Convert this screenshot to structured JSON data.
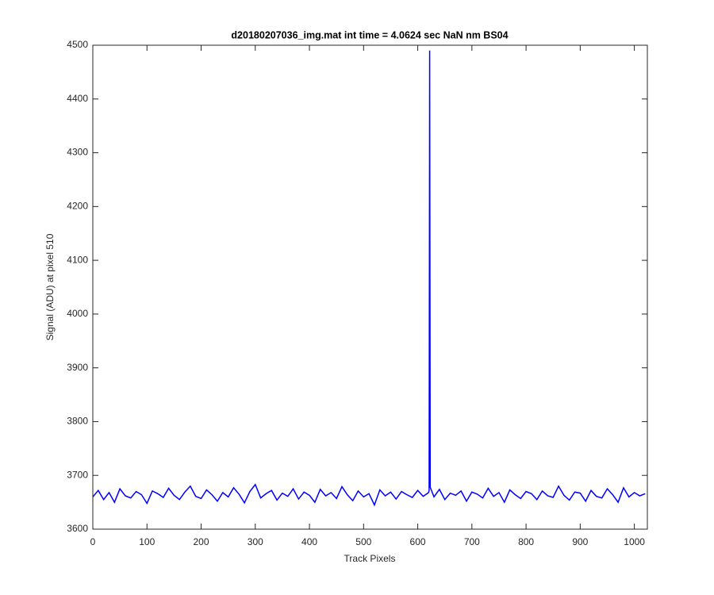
{
  "chart_data": {
    "type": "line",
    "title": "d20180207036_img.mat int time = 4.0624 sec  NaN nm BS04",
    "x_label": "Track Pixels",
    "y_label": "Signal (ADU) at pixel 510",
    "x": [
      0,
      10,
      20,
      30,
      40,
      50,
      60,
      70,
      80,
      90,
      100,
      110,
      120,
      130,
      140,
      150,
      160,
      170,
      180,
      190,
      200,
      210,
      220,
      230,
      240,
      250,
      260,
      270,
      280,
      290,
      300,
      310,
      320,
      330,
      340,
      350,
      360,
      370,
      380,
      390,
      400,
      410,
      420,
      430,
      440,
      450,
      460,
      470,
      480,
      490,
      500,
      510,
      520,
      530,
      540,
      550,
      560,
      570,
      580,
      590,
      600,
      610,
      620,
      621,
      622,
      623,
      630,
      640,
      650,
      660,
      670,
      680,
      690,
      700,
      710,
      720,
      730,
      740,
      750,
      760,
      770,
      780,
      790,
      800,
      810,
      820,
      830,
      840,
      850,
      860,
      870,
      880,
      890,
      900,
      910,
      920,
      930,
      940,
      950,
      960,
      970,
      980,
      990,
      1000,
      1010,
      1020
    ],
    "series": [
      {
        "color": "#0000ff",
        "values": [
          3660,
          3672,
          3655,
          3668,
          3650,
          3675,
          3662,
          3658,
          3670,
          3664,
          3648,
          3671,
          3666,
          3659,
          3676,
          3663,
          3655,
          3669,
          3680,
          3661,
          3657,
          3673,
          3664,
          3652,
          3668,
          3660,
          3677,
          3665,
          3649,
          3670,
          3683,
          3658,
          3666,
          3672,
          3654,
          3667,
          3661,
          3675,
          3656,
          3669,
          3663,
          3650,
          3674,
          3662,
          3668,
          3657,
          3679,
          3664,
          3653,
          3671,
          3660,
          3666,
          3645,
          3673,
          3662,
          3669,
          3656,
          3670,
          3664,
          3659,
          3672,
          3661,
          3668,
          3672,
          4490,
          3678,
          3660,
          3674,
          3655,
          3667,
          3663,
          3671,
          3652,
          3669,
          3665,
          3658,
          3676,
          3661,
          3668,
          3650,
          3673,
          3664,
          3657,
          3670,
          3666,
          3655,
          3671,
          3662,
          3659,
          3680,
          3663,
          3654,
          3669,
          3667,
          3652,
          3672,
          3661,
          3658,
          3675,
          3664,
          3650,
          3677,
          3660,
          3668,
          3662,
          3666
        ]
      }
    ],
    "xlim": [
      0,
      1024
    ],
    "ylim": [
      3600,
      4500
    ],
    "xticks": [
      0,
      100,
      200,
      300,
      400,
      500,
      600,
      700,
      800,
      900,
      1000
    ],
    "yticks": [
      3600,
      3700,
      3800,
      3900,
      4000,
      4100,
      4200,
      4300,
      4400,
      4500
    ]
  }
}
